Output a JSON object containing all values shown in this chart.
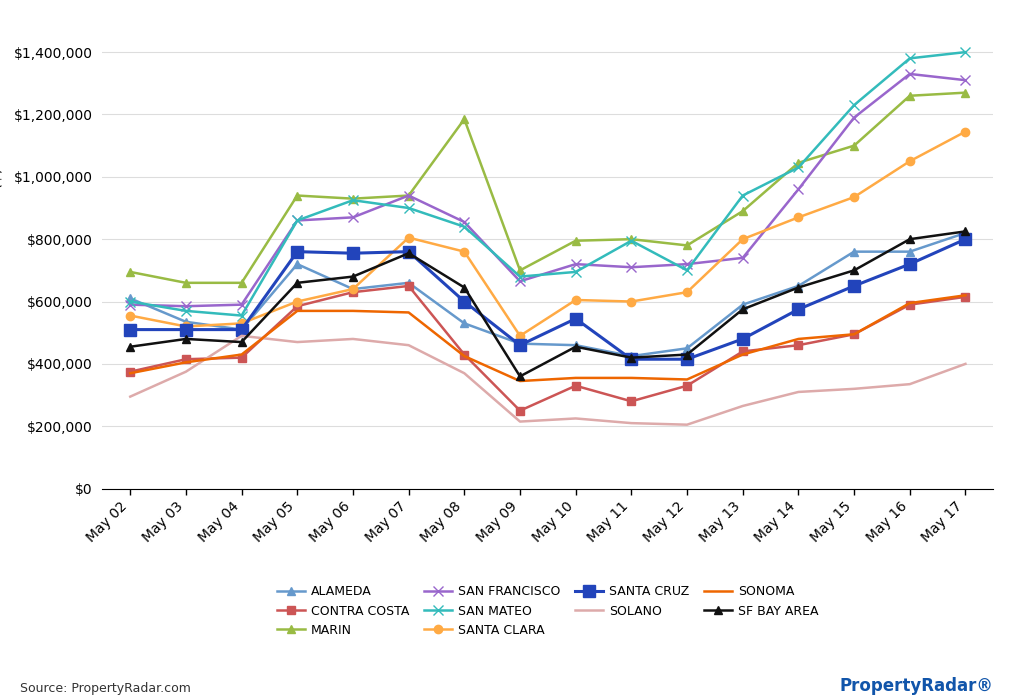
{
  "x_labels": [
    "May 02",
    "May 03",
    "May 04",
    "May 05",
    "May 06",
    "May 07",
    "May 08",
    "May 09",
    "May 10",
    "May 11",
    "May 12",
    "May 13",
    "May 14",
    "May 15",
    "May 16",
    "May 17"
  ],
  "series_order": [
    "ALAMEDA",
    "CONTRA COSTA",
    "MARIN",
    "SAN FRANCISCO",
    "SAN MATEO",
    "SANTA CLARA",
    "SANTA CRUZ",
    "SOLANO",
    "SONOMA",
    "SF BAY AREA"
  ],
  "legend_order": [
    "ALAMEDA",
    "CONTRA COSTA",
    "MARIN",
    "SAN FRANCISCO",
    "SAN MATEO",
    "SANTA CLARA",
    "SANTA CRUZ",
    "SOLANO",
    "SONOMA",
    "SF BAY AREA"
  ],
  "series": {
    "ALAMEDA": {
      "color": "#6699CC",
      "marker": "^",
      "markersize": 6,
      "linewidth": 1.8,
      "values": [
        610000,
        535000,
        510000,
        720000,
        640000,
        660000,
        530000,
        465000,
        460000,
        425000,
        450000,
        590000,
        650000,
        760000,
        760000,
        820000
      ]
    },
    "CONTRA COSTA": {
      "color": "#CC5555",
      "marker": "s",
      "markersize": 6,
      "linewidth": 1.8,
      "values": [
        375000,
        415000,
        420000,
        585000,
        630000,
        650000,
        430000,
        250000,
        330000,
        280000,
        330000,
        440000,
        460000,
        495000,
        590000,
        615000
      ]
    },
    "MARIN": {
      "color": "#99BB44",
      "marker": "^",
      "markersize": 6,
      "linewidth": 1.8,
      "values": [
        695000,
        660000,
        660000,
        940000,
        930000,
        940000,
        1185000,
        700000,
        795000,
        800000,
        780000,
        890000,
        1045000,
        1100000,
        1260000,
        1270000
      ]
    },
    "SAN FRANCISCO": {
      "color": "#9966CC",
      "marker": "x",
      "markersize": 7,
      "linewidth": 1.8,
      "values": [
        590000,
        585000,
        590000,
        860000,
        870000,
        940000,
        855000,
        665000,
        720000,
        710000,
        720000,
        740000,
        960000,
        1190000,
        1330000,
        1310000
      ]
    },
    "SAN MATEO": {
      "color": "#33BBBB",
      "marker": "x",
      "markersize": 7,
      "linewidth": 1.8,
      "values": [
        600000,
        570000,
        555000,
        860000,
        925000,
        900000,
        840000,
        680000,
        695000,
        795000,
        700000,
        940000,
        1030000,
        1230000,
        1380000,
        1400000
      ]
    },
    "SANTA CLARA": {
      "color": "#FFAA44",
      "marker": "o",
      "markersize": 6,
      "linewidth": 1.8,
      "values": [
        555000,
        520000,
        530000,
        600000,
        640000,
        805000,
        760000,
        490000,
        605000,
        600000,
        630000,
        800000,
        870000,
        935000,
        1050000,
        1145000
      ]
    },
    "SANTA CRUZ": {
      "color": "#2244BB",
      "marker": "s",
      "markersize": 8,
      "linewidth": 2.2,
      "values": [
        510000,
        510000,
        510000,
        760000,
        755000,
        760000,
        600000,
        460000,
        545000,
        415000,
        415000,
        480000,
        575000,
        650000,
        720000,
        800000
      ]
    },
    "SOLANO": {
      "color": "#DDAAAA",
      "marker": "None",
      "markersize": 0,
      "linewidth": 1.8,
      "values": [
        295000,
        375000,
        490000,
        470000,
        480000,
        460000,
        370000,
        215000,
        225000,
        210000,
        205000,
        265000,
        310000,
        320000,
        335000,
        400000
      ]
    },
    "SONOMA": {
      "color": "#EE6600",
      "marker": "None",
      "markersize": 0,
      "linewidth": 1.8,
      "values": [
        370000,
        405000,
        430000,
        570000,
        570000,
        565000,
        425000,
        345000,
        355000,
        355000,
        350000,
        430000,
        480000,
        495000,
        595000,
        620000
      ]
    },
    "SF BAY AREA": {
      "color": "#111111",
      "marker": "^",
      "markersize": 6,
      "linewidth": 1.8,
      "values": [
        455000,
        480000,
        470000,
        660000,
        680000,
        755000,
        645000,
        360000,
        455000,
        420000,
        430000,
        575000,
        645000,
        700000,
        800000,
        825000
      ]
    }
  },
  "ylim": [
    0,
    1500000
  ],
  "yticks": [
    0,
    200000,
    400000,
    600000,
    800000,
    1000000,
    1200000,
    1400000
  ],
  "ytick_labels": [
    "$0",
    "$200,000",
    "$400,000",
    "$600,000",
    "$800,000",
    "$1,000,000",
    "$1,200,000",
    "$1,400,000"
  ],
  "source_text": "Source: PropertyRadar.com",
  "background_color": "#FFFFFF",
  "plot_bg_color": "#FFFFFF",
  "grid_color": "#DDDDDD"
}
